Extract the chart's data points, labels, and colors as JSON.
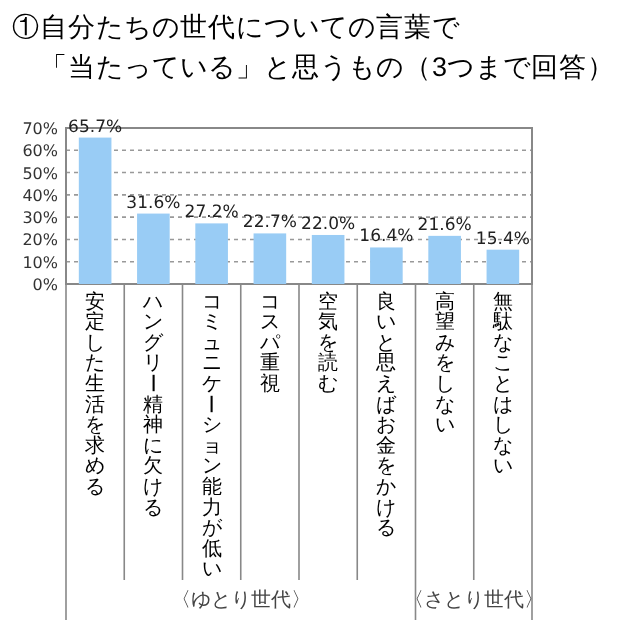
{
  "chart_data": {
    "type": "bar",
    "title": "①自分たちの世代についての言葉で「当たっている」と思うもの（3つまで回答）",
    "categories": [
      "安定した生活を求める",
      "ハングリー精神に欠ける",
      "コミュニケーション能力が低い",
      "コスパ重視",
      "空気を読む",
      "良いと思えばお金をかける",
      "高望みをしない",
      "無駄なことはしない"
    ],
    "values": [
      65.7,
      31.6,
      27.2,
      22.7,
      22.0,
      16.4,
      21.6,
      15.4
    ],
    "value_labels": [
      "65.7%",
      "31.6%",
      "27.2%",
      "22.7%",
      "22.0%",
      "16.4%",
      "21.6%",
      "15.4%"
    ],
    "color": "#99ccf5",
    "ylim": [
      0,
      70
    ],
    "yticks": [
      {
        "value": 0,
        "label": "0%"
      },
      {
        "value": 10,
        "label": "10%"
      },
      {
        "value": 20,
        "label": "20%"
      },
      {
        "value": 30,
        "label": "30%"
      },
      {
        "value": 40,
        "label": "40%"
      },
      {
        "value": 50,
        "label": "50%"
      },
      {
        "value": 60,
        "label": "60%"
      },
      {
        "value": 70,
        "label": "70%"
      }
    ],
    "grid": "y",
    "annotations": [
      "〈ゆとり世代〉",
      "〈さとり世代〉"
    ]
  }
}
